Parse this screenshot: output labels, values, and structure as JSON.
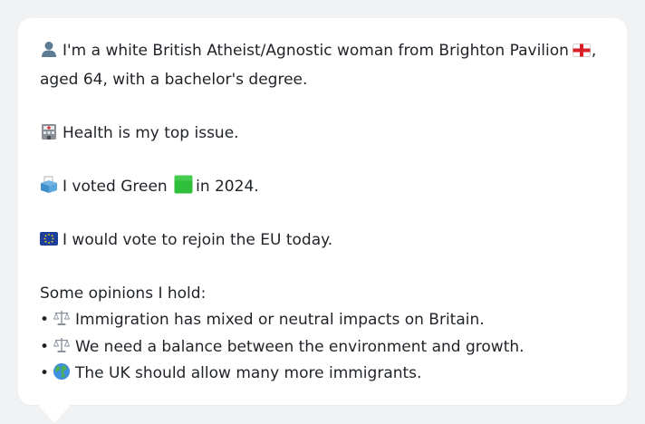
{
  "profile": {
    "line1": "I'm a white British Atheist/Agnostic woman from Brighton Pavilion",
    "line1_suffix": ",",
    "line2": "aged 64, with a bachelor's degree.",
    "health": "Health is my top issue.",
    "voted_prefix": "I voted Green",
    "voted_suffix": "in 2024.",
    "eu": "I would vote to rejoin the EU today."
  },
  "opinions": {
    "heading": "Some opinions I hold:",
    "items": [
      {
        "icon": "scales-icon",
        "text": "Immigration has mixed or neutral impacts on Britain."
      },
      {
        "icon": "scales-icon",
        "text": "We need a balance between the environment and growth."
      },
      {
        "icon": "globe-icon",
        "text": "The UK should allow many more immigrants."
      }
    ]
  },
  "colors": {
    "bubble": "#ffffff",
    "background": "#f1f2f4",
    "text": "#1f2328",
    "green_square": "#2fbf3a"
  }
}
